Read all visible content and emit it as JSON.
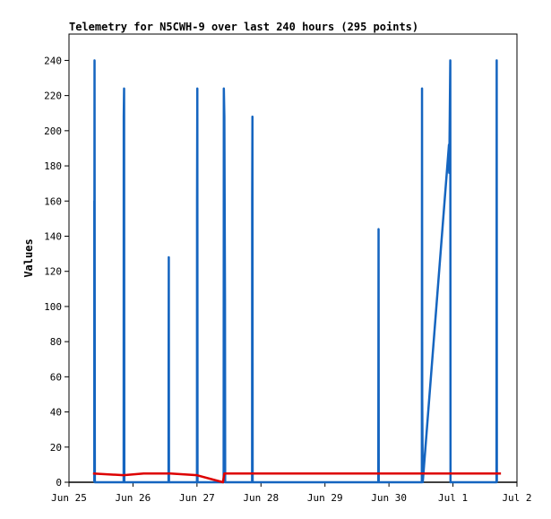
{
  "chart_data": {
    "type": "line",
    "title": "Telemetry for N5CWH-9 over last 240 hours (295 points)",
    "ylabel": "Values",
    "xlabel": "",
    "ylim": [
      0,
      255
    ],
    "xlim": [
      "2024-06-25T00:00",
      "2024-07-02T00:00"
    ],
    "grid": false,
    "legend": "none",
    "x_tick_labels": [
      "Jun 25",
      "Jun 26",
      "Jun 27",
      "Jun 28",
      "Jun 29",
      "Jun 30",
      "Jul 1",
      "Jul 2"
    ],
    "y_ticks": [
      0,
      20,
      40,
      60,
      80,
      100,
      120,
      140,
      160,
      180,
      200,
      220,
      240
    ],
    "series": [
      {
        "color": "#1565c0",
        "points": [
          [
            "2024-06-25T09:30",
            0
          ],
          [
            "2024-06-25T09:30",
            160
          ],
          [
            "2024-06-25T09:32",
            135
          ],
          [
            "2024-06-25T09:35",
            240
          ],
          [
            "2024-06-25T09:40",
            48
          ],
          [
            "2024-06-25T09:42",
            0
          ],
          [
            "2024-06-25T20:30",
            0
          ],
          [
            "2024-06-25T20:32",
            208
          ],
          [
            "2024-06-25T20:40",
            224
          ],
          [
            "2024-06-25T20:45",
            0
          ],
          [
            "2024-06-26T13:20",
            0
          ],
          [
            "2024-06-26T13:22",
            64
          ],
          [
            "2024-06-26T13:26",
            128
          ],
          [
            "2024-06-26T13:30",
            0
          ],
          [
            "2024-06-27T00:00",
            0
          ],
          [
            "2024-06-27T00:02",
            160
          ],
          [
            "2024-06-27T00:08",
            224
          ],
          [
            "2024-06-27T00:12",
            0
          ],
          [
            "2024-06-27T10:00",
            0
          ],
          [
            "2024-06-27T10:04",
            224
          ],
          [
            "2024-06-27T10:16",
            208
          ],
          [
            "2024-06-27T10:30",
            104
          ],
          [
            "2024-06-27T10:34",
            0
          ],
          [
            "2024-06-27T20:40",
            0
          ],
          [
            "2024-06-27T20:42",
            160
          ],
          [
            "2024-06-27T20:48",
            208
          ],
          [
            "2024-06-27T20:52",
            0
          ],
          [
            "2024-06-29T20:00",
            0
          ],
          [
            "2024-06-29T20:06",
            144
          ],
          [
            "2024-06-29T20:10",
            0
          ],
          [
            "2024-06-30T12:20",
            0
          ],
          [
            "2024-06-30T12:24",
            224
          ],
          [
            "2024-06-30T12:28",
            48
          ],
          [
            "2024-06-30T12:40",
            0
          ],
          [
            "2024-06-30T22:30",
            192
          ],
          [
            "2024-06-30T22:36",
            176
          ],
          [
            "2024-06-30T23:00",
            240
          ],
          [
            "2024-06-30T23:05",
            0
          ],
          [
            "2024-07-01T16:20",
            0
          ],
          [
            "2024-07-01T16:24",
            240
          ],
          [
            "2024-07-01T16:28",
            0
          ]
        ]
      },
      {
        "color": "#dd0000",
        "points": [
          [
            "2024-06-25T09:00",
            5
          ],
          [
            "2024-06-25T20:30",
            4
          ],
          [
            "2024-06-26T04:00",
            5
          ],
          [
            "2024-06-26T14:00",
            5
          ],
          [
            "2024-06-27T00:00",
            4
          ],
          [
            "2024-06-27T09:45",
            0
          ],
          [
            "2024-06-27T10:15",
            5
          ],
          [
            "2024-06-29T20:00",
            5
          ],
          [
            "2024-06-30T12:30",
            5
          ],
          [
            "2024-07-01T18:00",
            5
          ]
        ]
      }
    ]
  }
}
